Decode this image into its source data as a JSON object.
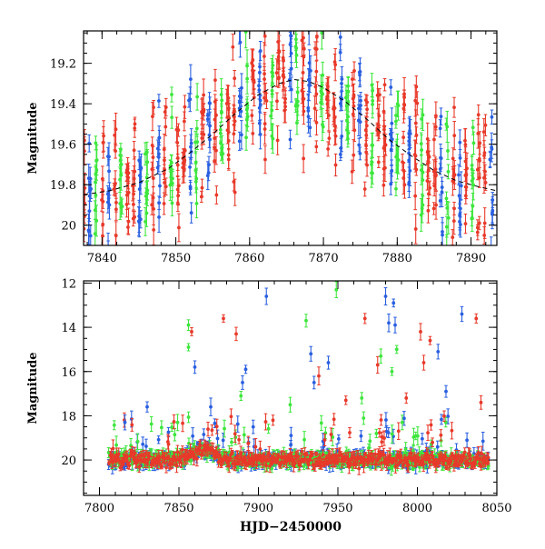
{
  "chart_data": [
    {
      "type": "scatter",
      "panel": "top",
      "ylabel": "Magnitude",
      "xlabel": "",
      "xlim": [
        7837.5,
        7893.5
      ],
      "ylim": [
        20.1,
        19.04
      ],
      "y_inverted": true,
      "x_ticks": [
        7840,
        7850,
        7860,
        7870,
        7880,
        7890
      ],
      "x_tick_labels": [
        "7840",
        "7850",
        "7860",
        "7870",
        "7880",
        "7890"
      ],
      "y_ticks": [
        19.2,
        19.4,
        19.6,
        19.8,
        20
      ],
      "y_tick_labels": [
        "19.2",
        "19.4",
        "19.6",
        "19.8",
        "20"
      ],
      "model_curve": {
        "style": "dashed",
        "color": "#000000",
        "x": [
          7837.5,
          7841,
          7845,
          7849,
          7852,
          7855,
          7858,
          7861,
          7864,
          7866,
          7868,
          7870,
          7873,
          7876,
          7879,
          7882,
          7885,
          7888,
          7891,
          7893.5
        ],
        "y": [
          19.85,
          19.83,
          19.79,
          19.72,
          19.64,
          19.55,
          19.45,
          19.36,
          19.3,
          19.28,
          19.29,
          19.32,
          19.39,
          19.48,
          19.58,
          19.66,
          19.73,
          19.78,
          19.81,
          19.83
        ]
      },
      "series": [
        {
          "color": "#e8392a",
          "marker": "circle"
        },
        {
          "color": "#2a5fe0",
          "marker": "circle"
        },
        {
          "color": "#3de63d",
          "marker": "cross"
        }
      ]
    },
    {
      "type": "scatter",
      "panel": "bottom",
      "ylabel": "Magnitude",
      "xlabel": "HJD−2450000",
      "xlim": [
        7790,
        8050
      ],
      "ylim": [
        21.6,
        11.9
      ],
      "y_inverted": true,
      "x_ticks": [
        7800,
        7850,
        7900,
        7950,
        8000,
        8050
      ],
      "x_tick_labels": [
        "7800",
        "7850",
        "7900",
        "7950",
        "8000",
        "8050"
      ],
      "y_ticks": [
        12,
        14,
        16,
        18,
        20
      ],
      "y_tick_labels": [
        "12",
        "14",
        "16",
        "18",
        "20"
      ],
      "band_x_range": [
        7806,
        8045
      ],
      "baseline_mag": 20.0,
      "outliers": [
        {
          "x": 7856,
          "y": 13.9,
          "c": "g"
        },
        {
          "x": 7856,
          "y": 14.9,
          "c": "g"
        },
        {
          "x": 7858,
          "y": 14.2,
          "c": "r"
        },
        {
          "x": 7860,
          "y": 15.8,
          "c": "b"
        },
        {
          "x": 7878,
          "y": 13.6,
          "c": "r"
        },
        {
          "x": 7886,
          "y": 14.3,
          "c": "r"
        },
        {
          "x": 7890,
          "y": 16.5,
          "c": "b"
        },
        {
          "x": 7892,
          "y": 15.9,
          "c": "b"
        },
        {
          "x": 7905,
          "y": 12.6,
          "c": "b"
        },
        {
          "x": 7930,
          "y": 13.7,
          "c": "g"
        },
        {
          "x": 7933,
          "y": 15.2,
          "c": "b"
        },
        {
          "x": 7938,
          "y": 16.2,
          "c": "r"
        },
        {
          "x": 7935,
          "y": 16.5,
          "c": "b"
        },
        {
          "x": 7944,
          "y": 15.6,
          "c": "b"
        },
        {
          "x": 7949,
          "y": 12.3,
          "c": "g"
        },
        {
          "x": 7967,
          "y": 13.6,
          "c": "r"
        },
        {
          "x": 7975,
          "y": 15.7,
          "c": "r"
        },
        {
          "x": 7977,
          "y": 15.3,
          "c": "g"
        },
        {
          "x": 7980,
          "y": 12.6,
          "c": "b"
        },
        {
          "x": 7982,
          "y": 13.8,
          "c": "b"
        },
        {
          "x": 7985,
          "y": 12.9,
          "c": "b"
        },
        {
          "x": 7986,
          "y": 13.9,
          "c": "b"
        },
        {
          "x": 7987,
          "y": 15.0,
          "c": "g"
        },
        {
          "x": 7984,
          "y": 16.0,
          "c": "g"
        },
        {
          "x": 8002,
          "y": 14.2,
          "c": "r"
        },
        {
          "x": 8004,
          "y": 15.6,
          "c": "r"
        },
        {
          "x": 8008,
          "y": 14.6,
          "c": "r"
        },
        {
          "x": 8013,
          "y": 15.1,
          "c": "b"
        },
        {
          "x": 8028,
          "y": 13.4,
          "c": "b"
        },
        {
          "x": 8037,
          "y": 13.6,
          "c": "r"
        },
        {
          "x": 7870,
          "y": 17.6,
          "c": "b"
        },
        {
          "x": 7889,
          "y": 17.1,
          "c": "g"
        },
        {
          "x": 7920,
          "y": 17.5,
          "c": "g"
        },
        {
          "x": 7955,
          "y": 17.3,
          "c": "r"
        },
        {
          "x": 7965,
          "y": 17.2,
          "c": "g"
        },
        {
          "x": 7993,
          "y": 17.2,
          "c": "r"
        },
        {
          "x": 8018,
          "y": 16.9,
          "c": "b"
        },
        {
          "x": 8040,
          "y": 17.4,
          "c": "r"
        },
        {
          "x": 7830,
          "y": 17.6,
          "c": "b"
        },
        {
          "x": 7816,
          "y": 18.3,
          "c": "b"
        }
      ],
      "series": [
        {
          "color": "#e8392a",
          "marker": "circle"
        },
        {
          "color": "#2a5fe0",
          "marker": "circle"
        },
        {
          "color": "#3de63d",
          "marker": "cross"
        }
      ]
    }
  ]
}
